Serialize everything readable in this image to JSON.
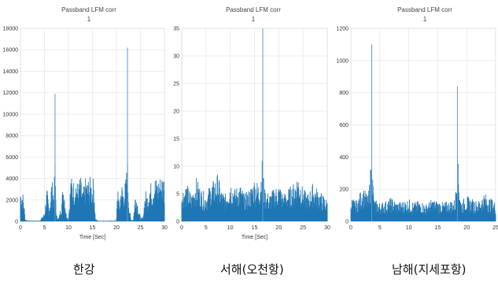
{
  "chart_data": [
    {
      "type": "line",
      "title": "Passband LFM corr",
      "subtitle": "1",
      "xlabel": "Time [Sec]",
      "ylabel": "",
      "xlim": [
        0,
        30
      ],
      "ylim": [
        0,
        18000
      ],
      "xticks": [
        "0",
        "5",
        "10",
        "15",
        "20",
        "25",
        "30"
      ],
      "yticks": [
        "0",
        "2000",
        "4000",
        "6000",
        "8000",
        "10000",
        "12000",
        "14000",
        "16000",
        "18000"
      ],
      "grid": true,
      "color": "#1f77b4",
      "caption": "한강",
      "series": [
        {
          "x": [
            0,
            0.5,
            0.8,
            1,
            1.5,
            2,
            2.5,
            3,
            4,
            5,
            5.5,
            6,
            6.5,
            7,
            7.2,
            7.5,
            8,
            8.5,
            9,
            9.5,
            10,
            10.5,
            11,
            11.5,
            12,
            12.5,
            13,
            13.5,
            14,
            14.5,
            15,
            15.3,
            15.6,
            16,
            17,
            18,
            19,
            20,
            20.3,
            20.6,
            21,
            21.5,
            22,
            22.3,
            22.6,
            23,
            23.5,
            24,
            24.5,
            25,
            25.5,
            26,
            26.5,
            27,
            27.5,
            28,
            28.5,
            29,
            29.5,
            30
          ],
          "y": [
            3300,
            2800,
            1500,
            200,
            100,
            80,
            80,
            80,
            80,
            800,
            3200,
            1200,
            4000,
            3000,
            11900,
            600,
            300,
            1800,
            4000,
            900,
            200,
            4300,
            3800,
            4200,
            3500,
            4400,
            2800,
            4100,
            3900,
            4200,
            3600,
            4400,
            300,
            100,
            80,
            80,
            80,
            100,
            4000,
            1400,
            3800,
            3000,
            4200,
            16200,
            1800,
            200,
            150,
            3200,
            1600,
            400,
            300,
            3000,
            2600,
            3800,
            3500,
            4300,
            4000,
            4200,
            4500,
            4400
          ]
        }
      ]
    },
    {
      "type": "line",
      "title": "Passband LFM corr",
      "subtitle": "1",
      "xlabel": "Time [Sec]",
      "ylabel": "",
      "xlim": [
        0,
        30
      ],
      "ylim": [
        0,
        35
      ],
      "xticks": [
        "0",
        "5",
        "10",
        "15",
        "20",
        "25",
        "30"
      ],
      "yticks": [
        "0",
        "5",
        "10",
        "15",
        "20",
        "25",
        "30",
        "35"
      ],
      "grid": true,
      "color": "#1f77b4",
      "caption": "서해(오천항)",
      "series": [
        {
          "x": [
            0,
            1,
            2,
            3,
            4,
            5,
            6,
            7,
            7.5,
            8,
            9,
            10,
            11,
            12,
            13,
            14,
            15,
            16,
            16.7,
            17,
            18,
            19,
            20,
            21,
            22,
            23,
            24,
            25,
            26,
            27,
            28,
            29,
            30
          ],
          "y": [
            6,
            7,
            5,
            8,
            6,
            5,
            7,
            8,
            9,
            6,
            5,
            8,
            6,
            7,
            5,
            6,
            8,
            7,
            35,
            6,
            5,
            6,
            7,
            5,
            6,
            7,
            9,
            6,
            5,
            7,
            6,
            5,
            4
          ]
        }
      ]
    },
    {
      "type": "line",
      "title": "Passband LFM corr",
      "subtitle": "1",
      "xlabel": "",
      "ylabel": "",
      "xlim": [
        0,
        25
      ],
      "ylim": [
        0,
        1200
      ],
      "xticks": [
        "0",
        "5",
        "10",
        "15",
        "20",
        "25"
      ],
      "yticks": [
        "0",
        "200",
        "400",
        "600",
        "800",
        "1000",
        "1200"
      ],
      "grid": true,
      "color": "#1f77b4",
      "caption": "남해(지세포항)",
      "series": [
        {
          "x": [
            0,
            1,
            2,
            3,
            3.6,
            4,
            5,
            6,
            7,
            8,
            9,
            10,
            11,
            12,
            13,
            14,
            15,
            16,
            17,
            18,
            18.4,
            19,
            20,
            21,
            22,
            23,
            24,
            25
          ],
          "y": [
            150,
            130,
            220,
            160,
            1100,
            140,
            120,
            130,
            150,
            120,
            130,
            140,
            120,
            130,
            110,
            140,
            130,
            120,
            130,
            140,
            840,
            130,
            160,
            140,
            130,
            180,
            150,
            120
          ]
        }
      ]
    }
  ]
}
